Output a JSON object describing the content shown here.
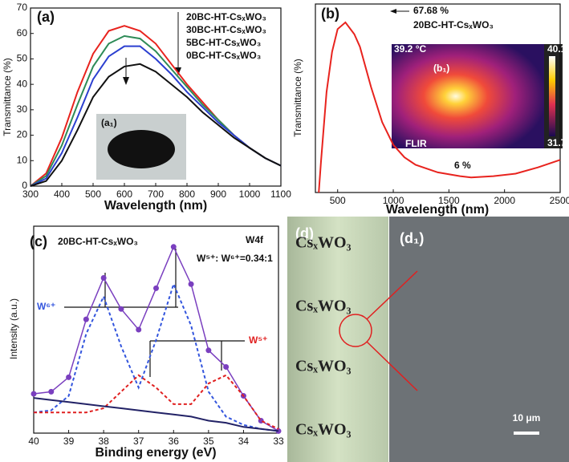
{
  "chart_data": [
    {
      "type": "line",
      "panel_label": "(a)",
      "inset_label": "(a₁)",
      "x_label": "Wavelength (nm)",
      "y_label": "Transmittance (%)",
      "x": [
        300,
        350,
        400,
        450,
        500,
        550,
        600,
        650,
        700,
        750,
        800,
        850,
        900,
        950,
        1000,
        1050,
        1100
      ],
      "xlim": [
        300,
        1100
      ],
      "ylim": [
        0,
        70
      ],
      "xticks": [
        300,
        400,
        500,
        600,
        700,
        800,
        900,
        1000,
        1100
      ],
      "yticks": [
        0,
        10,
        20,
        30,
        40,
        50,
        60,
        70
      ],
      "series": [
        {
          "name": "20BC-HT-CsₓWO₃",
          "color": "#e8231e",
          "values": [
            0,
            5,
            19,
            37,
            52,
            61,
            63,
            61,
            56,
            48,
            40,
            33,
            26,
            20,
            15,
            11,
            8
          ]
        },
        {
          "name": "30BC-HT-CsₓWO₃",
          "color": "#2e8b57",
          "values": [
            0,
            4,
            16,
            32,
            47,
            56,
            59,
            58,
            53,
            46,
            39,
            32,
            26,
            20,
            15,
            11,
            8
          ]
        },
        {
          "name": "5BC-HT-CsₓWO₃",
          "color": "#2b3fd0",
          "values": [
            0,
            3,
            13,
            27,
            42,
            51,
            55,
            55,
            50,
            44,
            37,
            31,
            25,
            20,
            15,
            11,
            8
          ]
        },
        {
          "name": "0BC-HT-CsₓWO₃",
          "color": "#111111",
          "values": [
            0,
            2,
            10,
            22,
            35,
            43,
            47,
            48,
            45,
            40,
            35,
            29,
            24,
            19,
            15,
            11,
            8
          ]
        }
      ]
    },
    {
      "type": "line",
      "panel_label": "(b)",
      "x_label": "Wavelength (nm)",
      "y_label": "Transmittance (%)",
      "x": [
        330,
        350,
        400,
        450,
        500,
        570,
        650,
        700,
        800,
        900,
        1000,
        1100,
        1200,
        1400,
        1600,
        1700,
        1900,
        2100,
        2300,
        2500
      ],
      "xlim": [
        300,
        2500
      ],
      "ylim": [
        0,
        75
      ],
      "xticks": [
        500,
        1000,
        1500,
        2000,
        2500
      ],
      "series": [
        {
          "color": "#e8231e",
          "values": [
            0,
            12,
            40,
            56,
            65,
            67.68,
            63,
            58,
            42,
            28,
            19,
            14,
            11,
            8,
            6.5,
            6,
            6.5,
            7.5,
            10,
            13
          ]
        }
      ],
      "annotations": [
        "67.68 %",
        "20BC-HT-CsₓWO₃",
        "6 %"
      ],
      "inset_texts": [
        "(b₁)",
        "39.2 °C",
        "40.1",
        "31.7",
        "FLIR"
      ]
    },
    {
      "type": "line",
      "panel_label": "(c)",
      "x_label": "Binding energy (eV)",
      "y_label": "Intensity (a.u.)",
      "x": [
        40,
        39.5,
        39,
        38.5,
        38,
        37.5,
        37,
        36.5,
        36,
        35.5,
        35,
        34.5,
        34,
        33.5,
        33
      ],
      "xlim": [
        40,
        33
      ],
      "ylim": [
        0,
        100
      ],
      "xticks": [
        40,
        39,
        38,
        37,
        36,
        35,
        34,
        33
      ],
      "series": [
        {
          "color": "#7a3fbf",
          "markers": true,
          "values": [
            19,
            20,
            27,
            55,
            75,
            60,
            50,
            70,
            90,
            72,
            40,
            32,
            18,
            6,
            1
          ]
        },
        {
          "color": "#3355dd",
          "dashed": true,
          "values": [
            10,
            11,
            18,
            48,
            66,
            42,
            22,
            45,
            72,
            52,
            20,
            8,
            4,
            2,
            1
          ]
        },
        {
          "color": "#e02020",
          "dashed": true,
          "values": [
            10,
            10,
            10,
            10,
            12,
            20,
            28,
            22,
            14,
            14,
            24,
            28,
            18,
            6,
            2
          ]
        },
        {
          "color": "#222266",
          "values": [
            17,
            16,
            15,
            14,
            13,
            12,
            11,
            10,
            9,
            8,
            6,
            5,
            3,
            2,
            1
          ]
        }
      ],
      "annotations": [
        "20BC-HT-CsₓWO₃",
        "W4f",
        "W⁵⁺: W⁶⁺=0.34:1",
        "W⁶⁺",
        "W⁵⁺"
      ]
    }
  ],
  "image_panel": {
    "label": "(d)",
    "zoom_label": "(d₁)",
    "sample_texts": [
      "CsₓWO₃",
      "CsₓWO₃",
      "CsₓWO₃",
      "CsₓWO₃"
    ],
    "scale_bar": "10 μm"
  }
}
